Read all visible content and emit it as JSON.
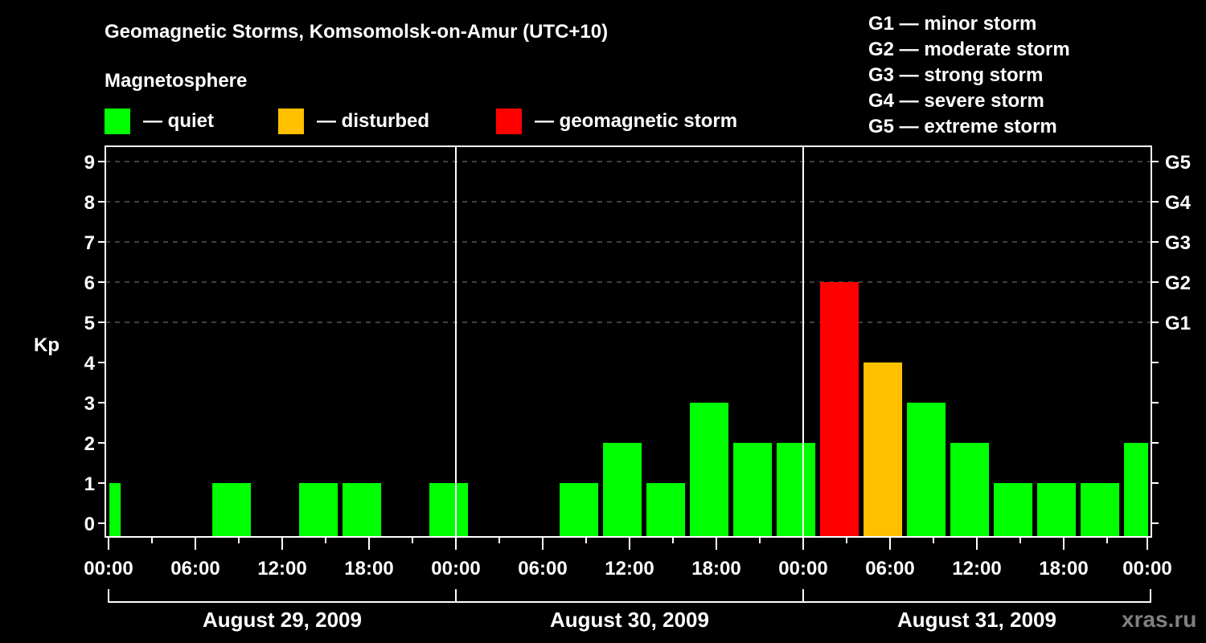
{
  "header": {
    "title": "Geomagnetic Storms, Komsomolsk-on-Amur (UTC+10)",
    "subtitle": "Magnetosphere"
  },
  "legend": [
    {
      "label": "— quiet",
      "color": "#00ff00"
    },
    {
      "label": "— disturbed",
      "color": "#ffc000"
    },
    {
      "label": "— geomagnetic storm",
      "color": "#ff0000"
    }
  ],
  "g_scale": [
    "G1 — minor storm",
    "G2 — moderate storm",
    "G3 — strong storm",
    "G4 — severe storm",
    "G5 — extreme storm"
  ],
  "watermark": "xras.ru",
  "colors": {
    "background": "#000000",
    "axis": "#ffffff",
    "grid": "#808080",
    "quiet": "#00ff00",
    "disturbed": "#ffc000",
    "storm": "#ff0000"
  },
  "chart_data": {
    "type": "bar",
    "title": "Geomagnetic Storms, Komsomolsk-on-Amur (UTC+10)",
    "ylabel": "Kp",
    "xlabel": "",
    "ylim": [
      0,
      9
    ],
    "yticks": [
      0,
      1,
      2,
      3,
      4,
      5,
      6,
      7,
      8,
      9
    ],
    "right_axis_labels": [
      {
        "kp": 5,
        "label": "G1"
      },
      {
        "kp": 6,
        "label": "G2"
      },
      {
        "kp": 7,
        "label": "G3"
      },
      {
        "kp": 8,
        "label": "G4"
      },
      {
        "kp": 9,
        "label": "G5"
      }
    ],
    "grid": {
      "dashed_at_kp": [
        5,
        6,
        7,
        8,
        9
      ]
    },
    "xtick_labels": [
      "00:00",
      "06:00",
      "12:00",
      "18:00",
      "00:00",
      "06:00",
      "12:00",
      "18:00",
      "00:00",
      "06:00",
      "12:00",
      "18:00",
      "00:00"
    ],
    "days": [
      "August 29, 2009",
      "August 30, 2009",
      "August 31, 2009"
    ],
    "interval_hours": 3,
    "first_bar_start_hour": -1.83,
    "bars": [
      {
        "start": "Aug 28 22:10",
        "kp": 1,
        "level": "quiet"
      },
      {
        "start": "Aug 29 01:10",
        "kp": 0,
        "level": "quiet"
      },
      {
        "start": "Aug 29 04:10",
        "kp": 0,
        "level": "quiet"
      },
      {
        "start": "Aug 29 07:10",
        "kp": 1,
        "level": "quiet"
      },
      {
        "start": "Aug 29 10:10",
        "kp": 0,
        "level": "quiet"
      },
      {
        "start": "Aug 29 13:10",
        "kp": 1,
        "level": "quiet"
      },
      {
        "start": "Aug 29 16:10",
        "kp": 1,
        "level": "quiet"
      },
      {
        "start": "Aug 29 19:10",
        "kp": 0,
        "level": "quiet"
      },
      {
        "start": "Aug 29 22:10",
        "kp": 1,
        "level": "quiet"
      },
      {
        "start": "Aug 30 01:10",
        "kp": 0,
        "level": "quiet"
      },
      {
        "start": "Aug 30 04:10",
        "kp": 0,
        "level": "quiet"
      },
      {
        "start": "Aug 30 07:10",
        "kp": 1,
        "level": "quiet"
      },
      {
        "start": "Aug 30 10:10",
        "kp": 2,
        "level": "quiet"
      },
      {
        "start": "Aug 30 13:10",
        "kp": 1,
        "level": "quiet"
      },
      {
        "start": "Aug 30 16:10",
        "kp": 3,
        "level": "quiet"
      },
      {
        "start": "Aug 30 19:10",
        "kp": 2,
        "level": "quiet"
      },
      {
        "start": "Aug 30 22:10",
        "kp": 2,
        "level": "quiet"
      },
      {
        "start": "Aug 31 01:10",
        "kp": 6,
        "level": "storm"
      },
      {
        "start": "Aug 31 04:10",
        "kp": 4,
        "level": "disturbed"
      },
      {
        "start": "Aug 31 07:10",
        "kp": 3,
        "level": "quiet"
      },
      {
        "start": "Aug 31 10:10",
        "kp": 2,
        "level": "quiet"
      },
      {
        "start": "Aug 31 13:10",
        "kp": 1,
        "level": "quiet"
      },
      {
        "start": "Aug 31 16:10",
        "kp": 1,
        "level": "quiet"
      },
      {
        "start": "Aug 31 19:10",
        "kp": 1,
        "level": "quiet"
      },
      {
        "start": "Aug 31 22:10",
        "kp": 2,
        "level": "quiet"
      }
    ]
  }
}
